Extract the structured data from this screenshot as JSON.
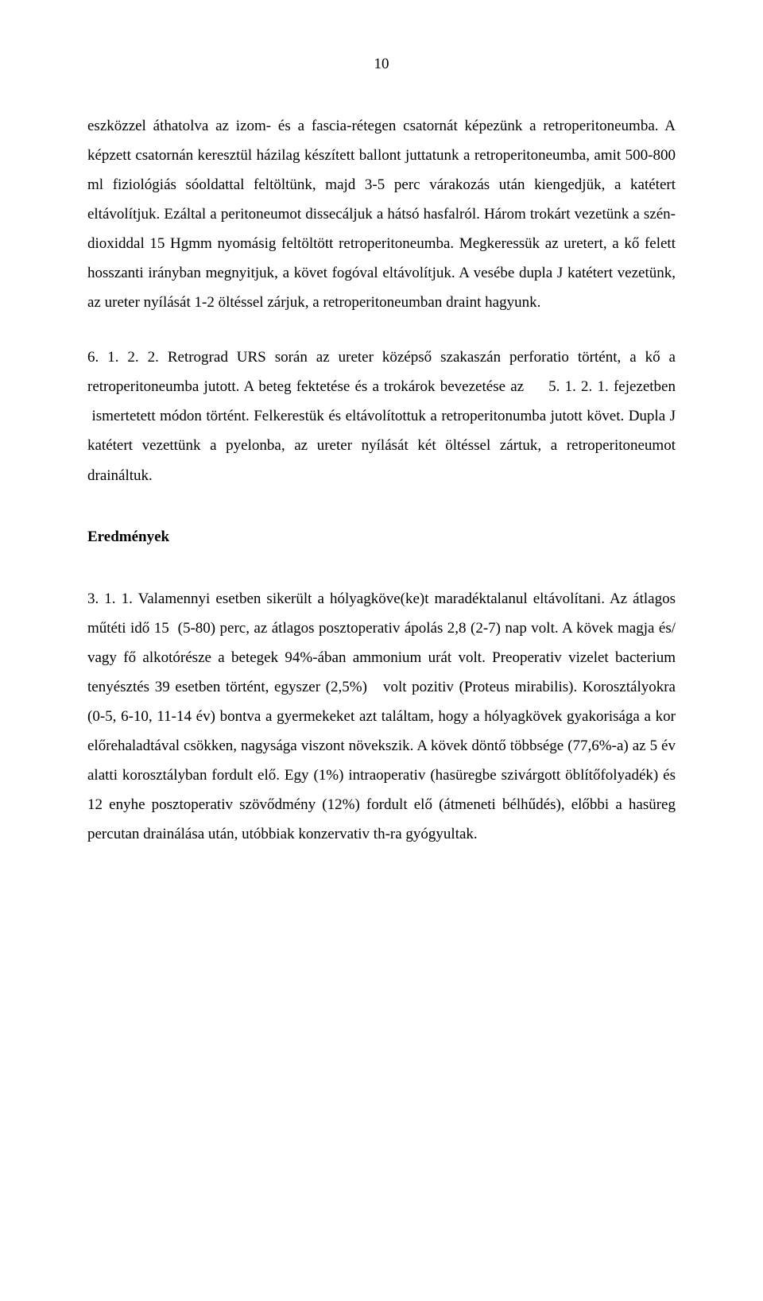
{
  "page_number": "10",
  "paragraph_1": "eszközzel áthatolva az izom- és a fascia-rétegen csatornát képezünk a retroperitoneumba. A képzett csatornán keresztül házilag készített ballont juttatunk a retroperitoneumba, amit 500-800 ml fiziológiás sóoldattal feltöltünk, majd 3-5 perc várakozás után kiengedjük, a katétert eltávolítjuk. Ezáltal a peritoneumot dissecáljuk a hátsó hasfalról. Három trokárt vezetünk a szén-dioxiddal 15 Hgmm nyomásig feltöltött retroperitoneumba. Megkeressük az uretert, a kő felett hosszanti irányban megnyitjuk, a követ fogóval eltávolítjuk. A vesébe dupla J katétert vezetünk, az ureter nyílását 1-2 öltéssel zárjuk, a retroperitoneumban draint hagyunk.",
  "paragraph_2": "6. 1. 2. 2. Retrograd URS során az ureter középső szakaszán perforatio történt, a kő a retroperitoneumba jutott. A beteg fektetése és a trokárok bevezetése az     5. 1. 2. 1. fejezetben  ismertetett módon történt. Felkerestük és eltávolítottuk a retroperitonumba jutott követ. Dupla J katétert vezettünk a pyelonba, az ureter nyílását két öltéssel zártuk, a retroperitoneumot draináltuk.",
  "heading_results": "Eredmények",
  "paragraph_3": "3. 1. 1. Valamennyi esetben sikerült a hólyagköve(ke)t maradéktalanul eltávolítani. Az átlagos műtéti idő 15  (5-80) perc, az átlagos posztoperativ ápolás 2,8 (2-7) nap volt. A kövek magja és/ vagy fő alkotórésze a betegek 94%-ában ammonium urát volt. Preoperativ vizelet bacterium tenyésztés 39 esetben történt, egyszer (2,5%)   volt pozitiv (Proteus mirabilis). Korosztályokra (0-5, 6-10, 11-14 év) bontva a gyermekeket azt találtam, hogy a hólyagkövek gyakorisága a kor előrehaladtával csökken, nagysága viszont növekszik. A kövek döntő többsége (77,6%-a) az 5 év alatti korosztályban fordult elő. Egy (1%) intraoperativ (hasüregbe szivárgott öblítőfolyadék) és 12 enyhe posztoperativ szövődmény (12%) fordult elő (átmeneti bélhűdés), előbbi a hasüreg percutan drainálása után, utóbbiak konzervativ th-ra gyógyultak."
}
